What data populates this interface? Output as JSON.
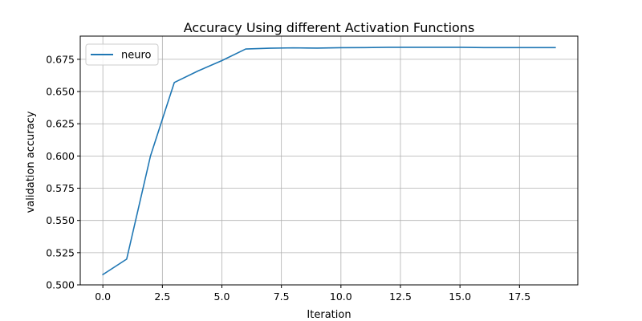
{
  "chart_data": {
    "type": "line",
    "title": "Accuracy Using different Activation Functions",
    "xlabel": "Iteration",
    "ylabel": "validation accuracy",
    "xlim": [
      -0.95,
      19.95
    ],
    "ylim": [
      0.5,
      0.693
    ],
    "xticks": [
      0.0,
      2.5,
      5.0,
      7.5,
      10.0,
      12.5,
      15.0,
      17.5
    ],
    "xtick_labels": [
      "0.0",
      "2.5",
      "5.0",
      "7.5",
      "10.0",
      "12.5",
      "15.0",
      "17.5"
    ],
    "yticks": [
      0.5,
      0.525,
      0.55,
      0.575,
      0.6,
      0.625,
      0.65,
      0.675
    ],
    "ytick_labels": [
      "0.500",
      "0.525",
      "0.550",
      "0.575",
      "0.600",
      "0.625",
      "0.650",
      "0.675"
    ],
    "grid": true,
    "legend_position": "top-left",
    "series": [
      {
        "name": "neuro",
        "color": "#1f77b4",
        "x": [
          0,
          1,
          2,
          3,
          4,
          5,
          6,
          7,
          8,
          9,
          10,
          11,
          12,
          13,
          14,
          15,
          16,
          17,
          18,
          19
        ],
        "y": [
          0.508,
          0.52,
          0.6,
          0.657,
          0.666,
          0.674,
          0.683,
          0.6836,
          0.6839,
          0.6837,
          0.684,
          0.6841,
          0.6843,
          0.6843,
          0.6843,
          0.6843,
          0.6841,
          0.6841,
          0.6841,
          0.6841
        ]
      }
    ]
  }
}
